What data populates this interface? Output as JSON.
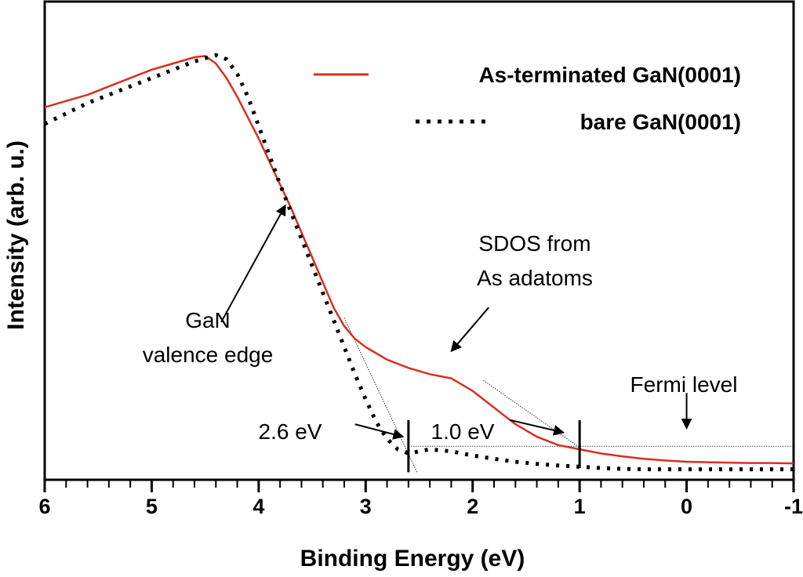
{
  "chart_data": {
    "type": "line",
    "xlabel": "Binding Energy (eV)",
    "ylabel": "Intensity (arb. u.)",
    "xlim": [
      6,
      -1
    ],
    "ylim": [
      0,
      1
    ],
    "x_reversed": true,
    "y_tick_labels": false,
    "x_ticks": [
      6,
      5,
      4,
      3,
      2,
      1,
      0,
      -1
    ],
    "x_tick_labels": [
      "6",
      "5",
      "4",
      "3",
      "2",
      "1",
      "0",
      "-1"
    ],
    "grid": false,
    "legend_position": "top-right",
    "colors": {
      "red": "#d7301f",
      "black": "#000000",
      "fit": "#555555"
    },
    "series": [
      {
        "name": "As-terminated GaN(0001)",
        "style": "solid",
        "color": "#d7301f",
        "x": [
          6.0,
          5.8,
          5.6,
          5.4,
          5.2,
          5.0,
          4.8,
          4.6,
          4.5,
          4.4,
          4.3,
          4.2,
          4.1,
          4.0,
          3.9,
          3.8,
          3.7,
          3.6,
          3.5,
          3.4,
          3.3,
          3.2,
          3.1,
          3.0,
          2.8,
          2.6,
          2.4,
          2.2,
          2.0,
          1.8,
          1.6,
          1.4,
          1.2,
          1.0,
          0.8,
          0.6,
          0.4,
          0.2,
          0.0,
          -0.2,
          -0.4,
          -0.6,
          -0.8,
          -1.0
        ],
        "y": [
          0.865,
          0.88,
          0.895,
          0.915,
          0.935,
          0.955,
          0.97,
          0.985,
          0.988,
          0.97,
          0.935,
          0.89,
          0.84,
          0.79,
          0.735,
          0.68,
          0.625,
          0.565,
          0.505,
          0.445,
          0.385,
          0.34,
          0.31,
          0.29,
          0.26,
          0.24,
          0.225,
          0.215,
          0.185,
          0.145,
          0.105,
          0.075,
          0.055,
          0.045,
          0.035,
          0.028,
          0.022,
          0.018,
          0.015,
          0.014,
          0.013,
          0.012,
          0.012,
          0.011
        ]
      },
      {
        "name": "bare GaN(0001)",
        "style": "dotted",
        "color": "#000000",
        "x": [
          6.0,
          5.8,
          5.6,
          5.4,
          5.2,
          5.0,
          4.8,
          4.6,
          4.4,
          4.3,
          4.2,
          4.1,
          4.0,
          3.9,
          3.8,
          3.7,
          3.6,
          3.5,
          3.4,
          3.3,
          3.2,
          3.1,
          3.0,
          2.9,
          2.8,
          2.7,
          2.6,
          2.5,
          2.4,
          2.2,
          2.0,
          1.8,
          1.6,
          1.4,
          1.2,
          1.0,
          0.8,
          0.6,
          0.4,
          0.2,
          0.0,
          -0.2,
          -0.4,
          -0.6,
          -0.8,
          -1.0
        ],
        "y": [
          0.825,
          0.85,
          0.875,
          0.895,
          0.915,
          0.935,
          0.955,
          0.975,
          0.99,
          0.98,
          0.945,
          0.89,
          0.82,
          0.75,
          0.68,
          0.615,
          0.55,
          0.485,
          0.42,
          0.355,
          0.29,
          0.225,
          0.165,
          0.11,
          0.07,
          0.045,
          0.035,
          0.04,
          0.045,
          0.04,
          0.03,
          0.022,
          0.015,
          0.01,
          0.006,
          0.003,
          0.0,
          -0.002,
          -0.003,
          -0.003,
          -0.003,
          -0.003,
          -0.003,
          -0.003,
          -0.003,
          -0.003
        ]
      }
    ],
    "fit_lines": [
      {
        "x": [
          3.2,
          2.52
        ],
        "y": [
          0.36,
          -0.01
        ]
      },
      {
        "x": [
          1.9,
          0.95
        ],
        "y": [
          0.21,
          0.04
        ]
      }
    ],
    "baseline": {
      "x": [
        2.6,
        -1.0
      ],
      "y": [
        0.052,
        0.052
      ]
    },
    "markers": [
      {
        "x": 2.6,
        "y0": -0.01,
        "y1": 0.115
      },
      {
        "x": 1.0,
        "y0": 0.0,
        "y1": 0.115
      }
    ],
    "annotations": [
      {
        "id": "gan",
        "lines": [
          "GaN",
          "valence edge"
        ],
        "arrow_from": [
          4.35,
          0.35
        ],
        "arrow_to": [
          3.75,
          0.63
        ]
      },
      {
        "id": "sdos",
        "lines": [
          "SDOS from",
          "As adatoms"
        ],
        "arrow_from": [
          1.85,
          0.385
        ],
        "arrow_to": [
          2.2,
          0.28
        ]
      },
      {
        "id": "fermi",
        "lines": [
          "Fermi level"
        ],
        "arrow_from": [
          0.0,
          0.18
        ],
        "arrow_to": [
          0.0,
          0.095
        ]
      },
      {
        "id": "e26",
        "lines": [
          "2.6 eV"
        ],
        "arrow_from": [
          3.1,
          0.105
        ],
        "arrow_to": [
          2.65,
          0.075
        ]
      },
      {
        "id": "e10",
        "lines": [
          "1.0 eV"
        ],
        "arrow_from": [
          1.65,
          0.115
        ],
        "arrow_to": [
          1.15,
          0.085
        ]
      }
    ]
  }
}
